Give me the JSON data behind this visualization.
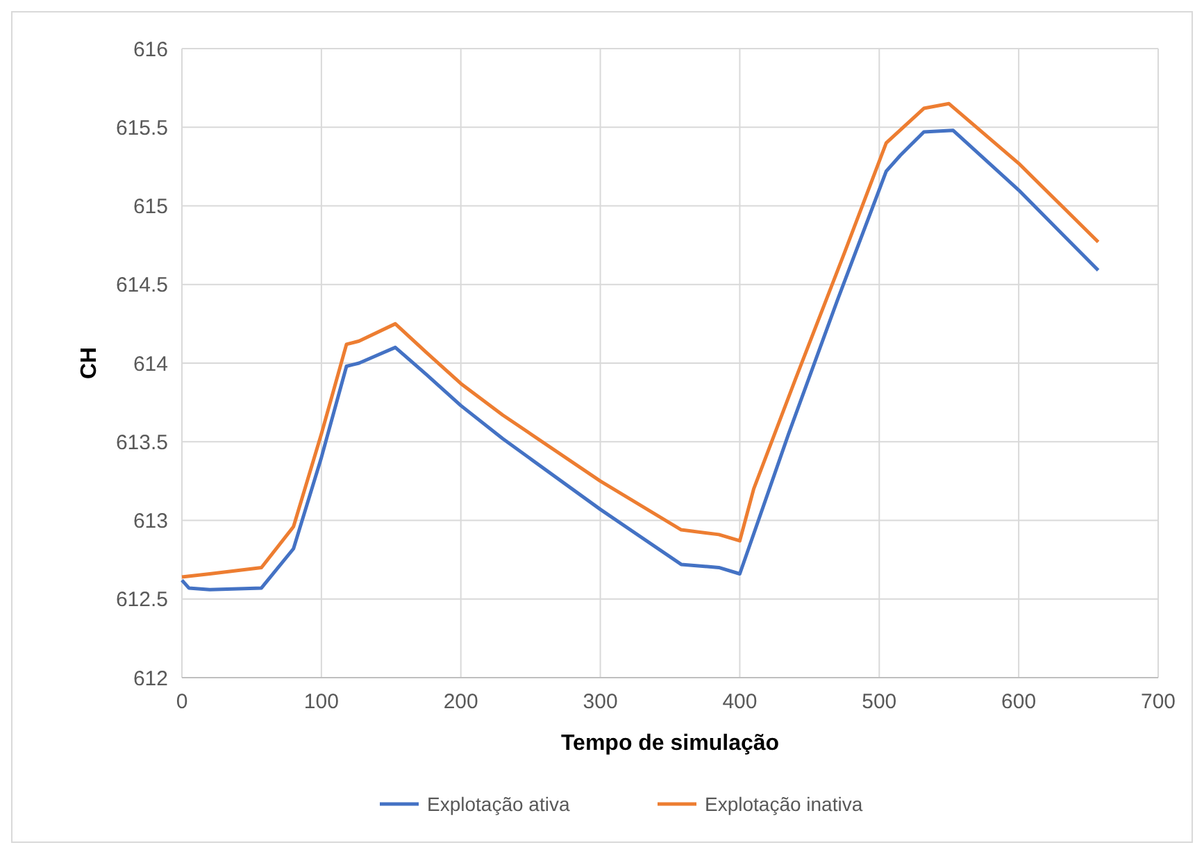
{
  "chart_data": {
    "type": "line",
    "xlabel": "Tempo de simulação",
    "ylabel": "CH",
    "xlim": [
      0,
      700
    ],
    "xticks": [
      0,
      100,
      200,
      300,
      400,
      500,
      600,
      700
    ],
    "ylim": [
      612,
      616
    ],
    "yticks": [
      612,
      612.5,
      613,
      613.5,
      614,
      614.5,
      615,
      615.5,
      616
    ],
    "grid": true,
    "legend": "bottom",
    "marker": "none",
    "line_style": "solid",
    "series": [
      {
        "name": "Explotação ativa",
        "color": "#4472c4",
        "x": [
          0,
          5,
          20,
          57,
          80,
          100,
          118,
          127,
          153,
          175,
          200,
          230,
          300,
          358,
          385,
          400,
          435,
          470,
          505,
          515,
          532,
          553,
          600,
          657
        ],
        "values": [
          612.62,
          612.57,
          612.56,
          612.57,
          612.82,
          613.4,
          613.98,
          614,
          614.1,
          613.93,
          613.73,
          613.52,
          613.07,
          612.72,
          612.7,
          612.66,
          613.55,
          614.4,
          615.22,
          615.32,
          615.47,
          615.48,
          615.1,
          614.59
        ]
      },
      {
        "name": "Explotação inativa",
        "color": "#ed7d31",
        "x": [
          0,
          20,
          57,
          80,
          100,
          118,
          127,
          153,
          175,
          200,
          230,
          300,
          358,
          385,
          400,
          410,
          440,
          475,
          505,
          532,
          550,
          600,
          657
        ],
        "values": [
          612.64,
          612.66,
          612.7,
          612.96,
          613.55,
          614.12,
          614.14,
          614.25,
          614.07,
          613.87,
          613.67,
          613.25,
          612.94,
          612.91,
          612.87,
          613.2,
          613.9,
          614.7,
          615.4,
          615.62,
          615.65,
          615.27,
          614.77
        ]
      }
    ]
  }
}
